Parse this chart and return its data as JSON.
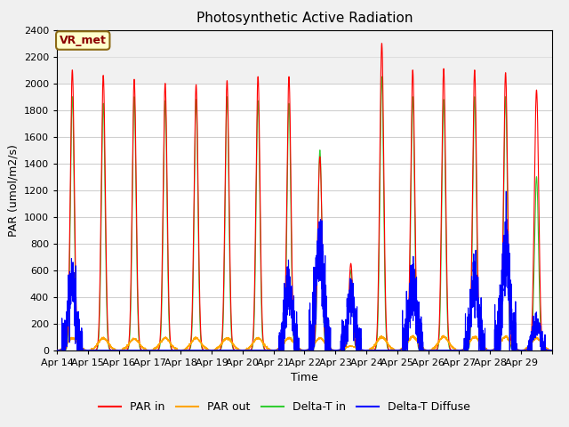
{
  "title": "Photosynthetic Active Radiation",
  "xlabel": "Time",
  "ylabel": "PAR (umol/m2/s)",
  "ylim": [
    0,
    2400
  ],
  "yticks": [
    0,
    200,
    400,
    600,
    800,
    1000,
    1200,
    1400,
    1600,
    1800,
    2000,
    2200,
    2400
  ],
  "xtick_labels": [
    "Apr 14",
    "Apr 15",
    "Apr 16",
    "Apr 17",
    "Apr 18",
    "Apr 19",
    "Apr 20",
    "Apr 21",
    "Apr 22",
    "Apr 23",
    "Apr 24",
    "Apr 25",
    "Apr 26",
    "Apr 27",
    "Apr 28",
    "Apr 29"
  ],
  "legend_labels": [
    "PAR in",
    "PAR out",
    "Delta-T in",
    "Delta-T Diffuse"
  ],
  "legend_colors": [
    "red",
    "orange",
    "limegreen",
    "blue"
  ],
  "annotation_text": "VR_met",
  "annotation_box_color": "#ffffcc",
  "annotation_box_edge": "#8B6914",
  "figure_facecolor": "#f0f0f0",
  "axes_facecolor": "#ffffff",
  "grid_color": "#d0d0d0",
  "n_days": 16,
  "points_per_day": 288,
  "line_width": 0.8,
  "par_in_peaks": [
    2100,
    2060,
    2030,
    2000,
    1990,
    2020,
    2050,
    2050,
    1450,
    650,
    2300,
    2100,
    2110,
    2100,
    2080,
    1950
  ],
  "par_in_widths": [
    0.065,
    0.065,
    0.065,
    0.065,
    0.065,
    0.065,
    0.065,
    0.065,
    0.07,
    0.065,
    0.065,
    0.065,
    0.065,
    0.065,
    0.065,
    0.07
  ],
  "green_peaks": [
    1900,
    1850,
    1900,
    1870,
    1880,
    1900,
    1870,
    1850,
    1500,
    600,
    2050,
    1900,
    1880,
    1900,
    1900,
    1300
  ],
  "green_widths": [
    0.06,
    0.06,
    0.06,
    0.06,
    0.06,
    0.06,
    0.06,
    0.06,
    0.065,
    0.06,
    0.06,
    0.06,
    0.06,
    0.06,
    0.06,
    0.065
  ],
  "par_out_peaks": [
    90,
    90,
    85,
    90,
    90,
    90,
    90,
    90,
    90,
    30,
    100,
    100,
    100,
    100,
    100,
    90
  ],
  "diffuse_days": {
    "0": 530,
    "7": 460,
    "8": 800,
    "9": 400,
    "11": 530,
    "13": 530,
    "14": 800,
    "15": 200
  }
}
